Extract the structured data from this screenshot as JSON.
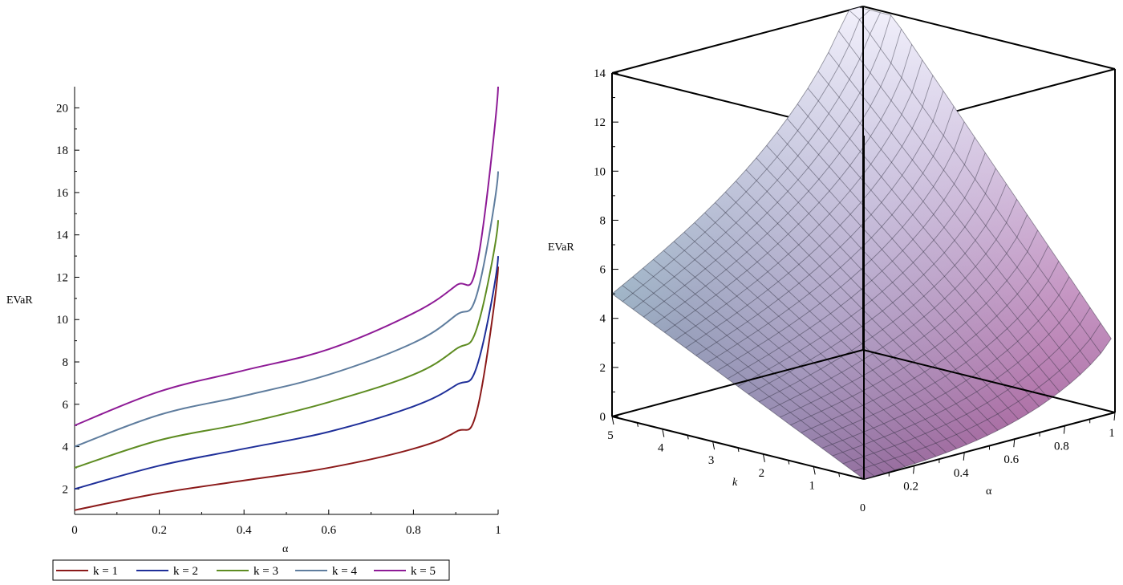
{
  "chart_data": [
    {
      "type": "line",
      "xlabel": "α",
      "ylabel": "EVaR",
      "xlim": [
        0,
        1
      ],
      "ylim": [
        0.8,
        21
      ],
      "x_ticks": [
        "0",
        "0.2",
        "0.4",
        "0.6",
        "0.8",
        "1"
      ],
      "y_ticks": [
        "2",
        "4",
        "6",
        "8",
        "10",
        "12",
        "14",
        "16",
        "18",
        "20"
      ],
      "legend_position": "bottom",
      "series": [
        {
          "name": "k = 1",
          "color": "#8b1a1a",
          "x": [
            0,
            0.2,
            0.4,
            0.6,
            0.8,
            0.9,
            0.95,
            1
          ],
          "y": [
            1,
            1.8,
            2.4,
            3.0,
            3.9,
            4.7,
            5.7,
            12.5
          ]
        },
        {
          "name": "k = 2",
          "color": "#1f2f99",
          "x": [
            0,
            0.2,
            0.4,
            0.6,
            0.8,
            0.9,
            0.95,
            1
          ],
          "y": [
            2,
            3.1,
            3.9,
            4.7,
            5.9,
            6.9,
            7.8,
            13.0
          ]
        },
        {
          "name": "k = 3",
          "color": "#5e8c22",
          "x": [
            0,
            0.2,
            0.4,
            0.6,
            0.8,
            0.9,
            0.95,
            1
          ],
          "y": [
            3,
            4.3,
            5.1,
            6.1,
            7.4,
            8.6,
            9.6,
            14.7
          ]
        },
        {
          "name": "k = 4",
          "color": "#5f7d9e",
          "x": [
            0,
            0.2,
            0.4,
            0.6,
            0.8,
            0.9,
            0.95,
            1
          ],
          "y": [
            4,
            5.5,
            6.4,
            7.4,
            8.9,
            10.2,
            11.2,
            17.0
          ]
        },
        {
          "name": "k = 5",
          "color": "#8e1b96",
          "x": [
            0,
            0.2,
            0.4,
            0.6,
            0.8,
            0.9,
            0.95,
            1
          ],
          "y": [
            5,
            6.6,
            7.6,
            8.6,
            10.3,
            11.6,
            12.6,
            21.0
          ]
        }
      ]
    },
    {
      "type": "surface",
      "xlabel": "α",
      "ylabel": "k",
      "zlabel": "EVaR",
      "xlim": [
        0,
        1
      ],
      "ylim": [
        0,
        5
      ],
      "zlim": [
        0,
        14
      ],
      "x_ticks": [
        "0.2",
        "0.4",
        "0.6",
        "0.8",
        "1"
      ],
      "y_ticks": [
        "1",
        "2",
        "3",
        "4",
        "5"
      ],
      "z_ticks": [
        "0",
        "2",
        "4",
        "6",
        "8",
        "10",
        "12",
        "14"
      ],
      "zero_label": "0"
    }
  ]
}
